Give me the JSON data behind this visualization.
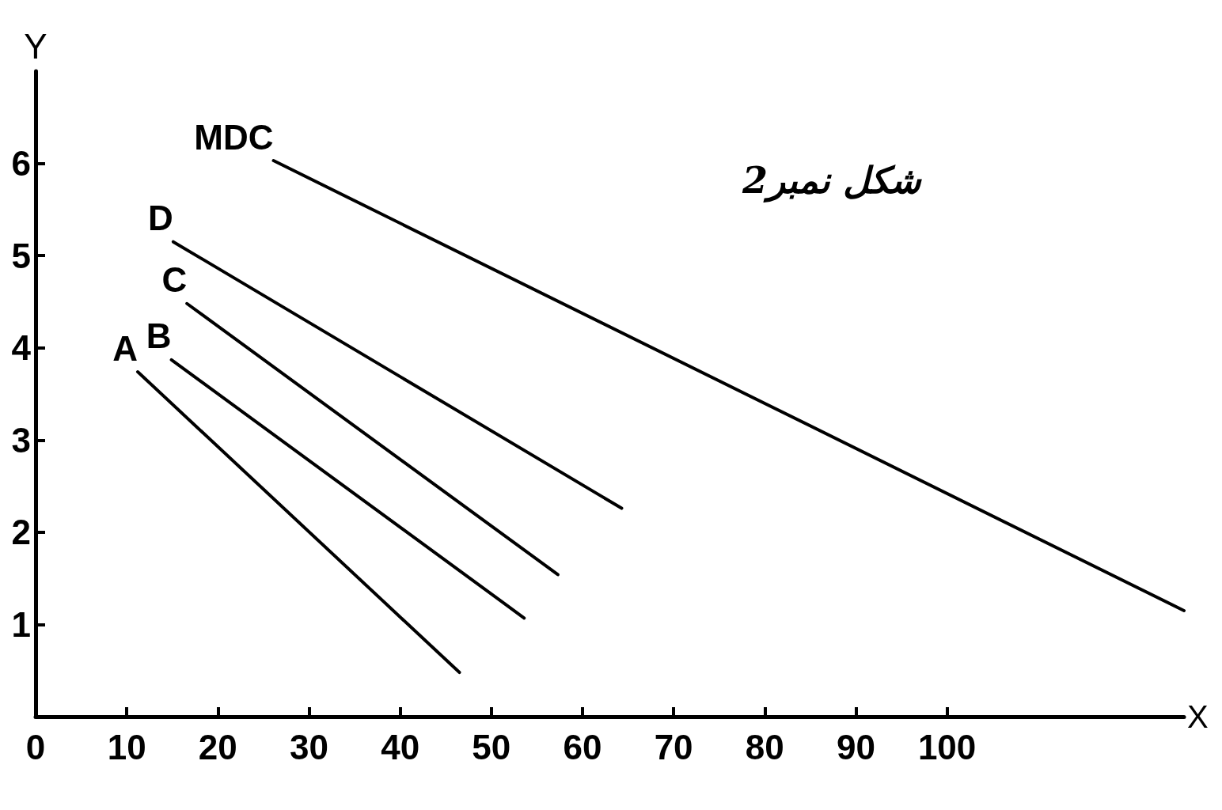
{
  "chart_data": {
    "type": "line",
    "xlabel": "X",
    "ylabel": "Y",
    "xlim": [
      0,
      126
    ],
    "xticks": [
      0,
      10,
      20,
      30,
      40,
      50,
      60,
      70,
      80,
      90,
      100
    ],
    "ylim": [
      0,
      7
    ],
    "yticks": [
      1,
      2,
      3,
      4,
      5,
      6
    ],
    "series": [
      {
        "name": "A",
        "color": "#000000",
        "x": [
          11.2,
          46.5
        ],
        "values": [
          3.74,
          0.48
        ]
      },
      {
        "name": "B",
        "color": "#000000",
        "x": [
          14.9,
          53.6
        ],
        "values": [
          3.87,
          1.07
        ]
      },
      {
        "name": "C",
        "color": "#000000",
        "x": [
          16.6,
          57.3
        ],
        "values": [
          4.48,
          1.54
        ]
      },
      {
        "name": "D",
        "color": "#000000",
        "x": [
          15.1,
          64.3
        ],
        "values": [
          5.15,
          2.26
        ]
      },
      {
        "name": "MDC",
        "color": "#000000",
        "x": [
          26.1,
          126
        ],
        "values": [
          6.03,
          1.15
        ]
      }
    ],
    "annotations": [
      "شکل نمبر2"
    ],
    "grid": false,
    "legend": false,
    "marker": "none",
    "line_style": "solid"
  }
}
